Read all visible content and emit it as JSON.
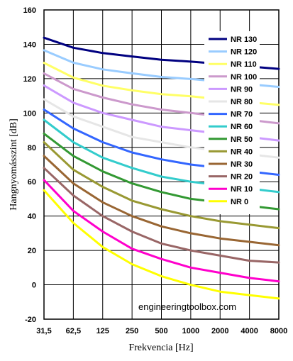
{
  "chart_data": {
    "type": "line",
    "title": "",
    "xlabel": "Frekvencia [Hz]",
    "ylabel": "Hangnyomásszint [dB]",
    "categories": [
      "31,5",
      "62,5",
      "125",
      "250",
      "500",
      "1000",
      "2000",
      "4000",
      "8000"
    ],
    "ylim": [
      -20,
      160
    ],
    "yticks": [
      -20,
      0,
      20,
      40,
      60,
      80,
      100,
      120,
      140,
      160
    ],
    "grid": true,
    "legend_position": "top-right",
    "watermark": "engineeringtoolbox.com",
    "series": [
      {
        "name": "NR 130",
        "color": "#000080",
        "values": [
          143.8,
          138.0,
          134.9,
          132.9,
          131.0,
          129.9,
          128.6,
          127.1,
          125.7
        ]
      },
      {
        "name": "NR 120",
        "color": "#99ccff",
        "values": [
          136.5,
          129.3,
          125.4,
          123.1,
          121.0,
          119.8,
          118.3,
          116.7,
          115.2
        ]
      },
      {
        "name": "NR 110",
        "color": "#ffff66",
        "values": [
          129.2,
          120.6,
          115.9,
          113.2,
          111.0,
          109.7,
          108.0,
          106.3,
          104.7
        ]
      },
      {
        "name": "NR 100",
        "color": "#cc99cc",
        "values": [
          123.0,
          114.0,
          109.0,
          105.0,
          102.0,
          100.0,
          98.0,
          96.0,
          94.0
        ]
      },
      {
        "name": "NR 90",
        "color": "#cc99ff",
        "values": [
          116.0,
          106.0,
          100.0,
          96.0,
          92.0,
          90.0,
          88.0,
          86.0,
          84.0
        ]
      },
      {
        "name": "NR 80",
        "color": "#e6e6e6",
        "values": [
          108.0,
          98.0,
          92.0,
          86.0,
          83.0,
          80.0,
          78.0,
          76.0,
          74.0
        ]
      },
      {
        "name": "NR 70",
        "color": "#3366ff",
        "values": [
          102.0,
          91.0,
          83.0,
          77.0,
          73.0,
          70.0,
          68.0,
          66.0,
          64.0
        ]
      },
      {
        "name": "NR 60",
        "color": "#33cccc",
        "values": [
          96.0,
          83.0,
          74.0,
          68.0,
          63.0,
          60.0,
          58.0,
          56.0,
          54.0
        ]
      },
      {
        "name": "NR 50",
        "color": "#339933",
        "values": [
          88.0,
          75.0,
          66.0,
          59.0,
          54.0,
          50.0,
          48.0,
          46.0,
          44.0
        ]
      },
      {
        "name": "NR 40",
        "color": "#999933",
        "values": [
          83.0,
          67.0,
          57.0,
          49.0,
          44.0,
          40.0,
          37.0,
          35.0,
          33.0
        ]
      },
      {
        "name": "NR 30",
        "color": "#996633",
        "values": [
          75.0,
          59.0,
          48.0,
          40.0,
          34.0,
          30.0,
          27.0,
          25.0,
          23.0
        ]
      },
      {
        "name": "NR 20",
        "color": "#996666",
        "values": [
          68.0,
          52.0,
          40.0,
          31.0,
          24.0,
          20.0,
          17.0,
          14.0,
          13.0
        ]
      },
      {
        "name": "NR 10",
        "color": "#ff00cc",
        "values": [
          61.0,
          43.0,
          31.0,
          21.0,
          15.0,
          10.0,
          7.0,
          4.0,
          2.0
        ]
      },
      {
        "name": "NR 0",
        "color": "#ffff00",
        "values": [
          55.0,
          36.0,
          22.0,
          12.0,
          5.0,
          0.0,
          -4.0,
          -6.0,
          -8.0
        ]
      }
    ]
  }
}
